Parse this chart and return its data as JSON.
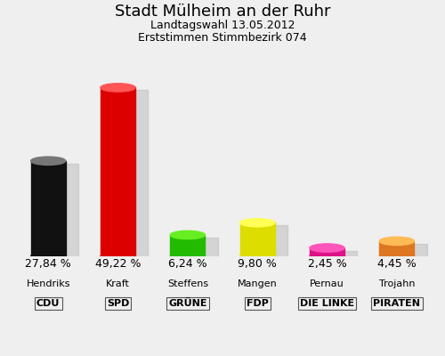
{
  "title": "Stadt Mülheim an der Ruhr",
  "subtitle1": "Landtagswahl 13.05.2012",
  "subtitle2": "Erststimmen Stimmbezirk 074",
  "candidates": [
    "Hendriks",
    "Kraft",
    "Steffens",
    "Mangen",
    "Pernau",
    "Trojahn"
  ],
  "parties": [
    "CDU",
    "SPD",
    "GRÜNE",
    "FDP",
    "DIE LINKE",
    "PIRATEN"
  ],
  "values": [
    27.84,
    49.22,
    6.24,
    9.8,
    2.45,
    4.45
  ],
  "bar_colors": [
    "#111111",
    "#DD0000",
    "#22BB00",
    "#DDDD00",
    "#DD1188",
    "#DD7722"
  ],
  "bar_colors_light": [
    "#777777",
    "#FF5555",
    "#66EE22",
    "#FFFF55",
    "#FF55BB",
    "#FFBB55"
  ],
  "background_color": "#EFEFEF",
  "title_fontsize": 13,
  "subtitle_fontsize": 9,
  "label_fontsize": 8,
  "value_fontsize": 9
}
